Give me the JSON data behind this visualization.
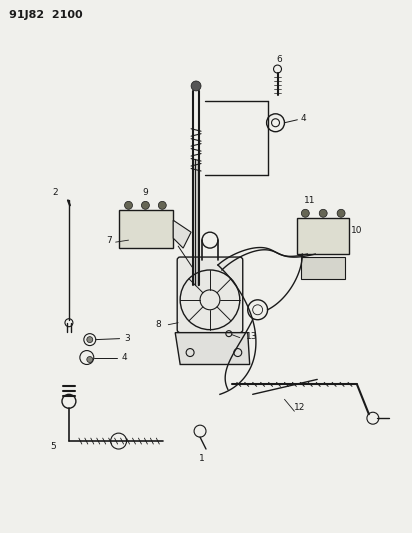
{
  "title_code": "91J82  2100",
  "bg": "#f0f0ec",
  "lc": "#1a1a1a",
  "fig_w": 4.12,
  "fig_h": 5.33,
  "dpi": 100
}
